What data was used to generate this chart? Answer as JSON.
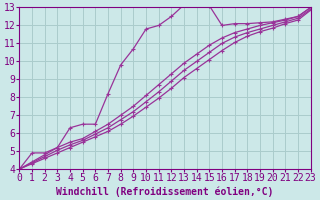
{
  "xlabel": "Windchill (Refroidissement éolien,°C)",
  "xlim": [
    0,
    23
  ],
  "ylim": [
    4,
    13
  ],
  "yticks": [
    4,
    5,
    6,
    7,
    8,
    9,
    10,
    11,
    12,
    13
  ],
  "xticks": [
    0,
    1,
    2,
    3,
    4,
    5,
    6,
    7,
    8,
    9,
    10,
    11,
    12,
    13,
    14,
    15,
    16,
    17,
    18,
    19,
    20,
    21,
    22,
    23
  ],
  "background_color": "#cce8e8",
  "grid_color": "#aacccc",
  "line_color": "#993399",
  "line1_x": [
    0,
    1,
    2,
    3,
    4,
    5,
    6,
    7,
    8,
    9,
    10,
    11,
    12,
    13,
    14,
    15,
    16,
    17,
    18,
    19,
    20,
    21,
    22,
    23
  ],
  "line1_y": [
    4.0,
    4.9,
    4.9,
    5.2,
    6.3,
    6.5,
    6.5,
    8.2,
    9.8,
    10.7,
    11.8,
    12.0,
    12.5,
    13.15,
    13.35,
    13.1,
    12.0,
    12.1,
    12.1,
    12.15,
    12.2,
    12.35,
    12.5,
    13.0
  ],
  "line2_x": [
    0,
    1,
    2,
    3,
    4,
    5,
    6,
    7,
    8,
    9,
    10,
    11,
    12,
    13,
    14,
    15,
    16,
    17,
    18,
    19,
    20,
    21,
    22,
    23
  ],
  "line2_y": [
    4.0,
    4.4,
    4.8,
    5.2,
    5.5,
    5.7,
    6.1,
    6.5,
    7.0,
    7.5,
    8.1,
    8.7,
    9.3,
    9.9,
    10.4,
    10.9,
    11.3,
    11.6,
    11.8,
    12.0,
    12.15,
    12.3,
    12.5,
    13.0
  ],
  "line3_x": [
    0,
    1,
    2,
    3,
    4,
    5,
    6,
    7,
    8,
    9,
    10,
    11,
    12,
    13,
    14,
    15,
    16,
    17,
    18,
    19,
    20,
    21,
    22,
    23
  ],
  "line3_y": [
    4.0,
    4.35,
    4.7,
    5.05,
    5.35,
    5.6,
    5.95,
    6.3,
    6.75,
    7.2,
    7.75,
    8.3,
    8.9,
    9.5,
    10.0,
    10.5,
    11.0,
    11.35,
    11.6,
    11.8,
    12.0,
    12.2,
    12.4,
    12.9
  ],
  "line4_x": [
    0,
    1,
    2,
    3,
    4,
    5,
    6,
    7,
    8,
    9,
    10,
    11,
    12,
    13,
    14,
    15,
    16,
    17,
    18,
    19,
    20,
    21,
    22,
    23
  ],
  "line4_y": [
    4.0,
    4.3,
    4.6,
    4.9,
    5.2,
    5.5,
    5.8,
    6.1,
    6.5,
    6.95,
    7.45,
    7.95,
    8.5,
    9.1,
    9.6,
    10.1,
    10.6,
    11.05,
    11.4,
    11.65,
    11.85,
    12.1,
    12.3,
    12.85
  ],
  "font_color": "#800080",
  "font_family": "monospace",
  "font_size_ticks": 7,
  "font_size_xlabel": 7
}
